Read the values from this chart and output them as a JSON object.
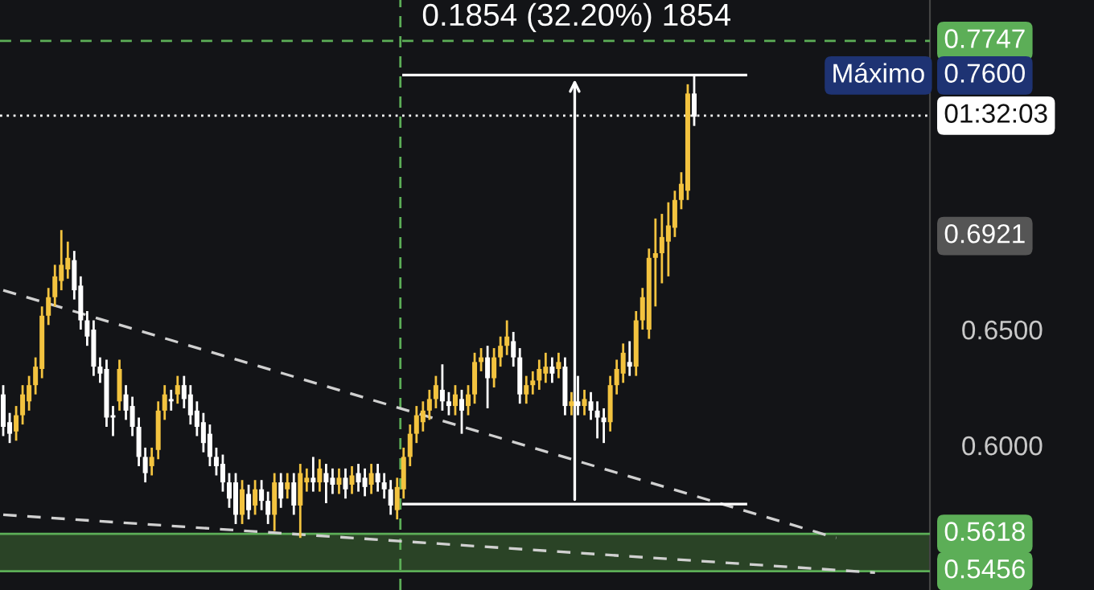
{
  "chart_data": {
    "type": "candlestick",
    "annotations": [
      "0.1854 (32.20%) 1854",
      "Máximo",
      "0.7600",
      "0.6921"
    ],
    "categories": [
      null,
      null,
      null,
      null,
      null,
      null,
      null,
      null,
      null,
      null,
      null,
      null,
      null,
      null,
      null,
      null,
      null,
      null,
      null,
      null,
      null,
      null,
      null,
      null,
      null,
      null,
      null,
      null,
      null,
      null,
      null,
      null,
      null,
      null,
      null,
      null,
      null,
      null,
      null,
      null,
      null,
      null,
      null,
      null,
      null,
      null,
      null,
      null,
      null,
      null,
      null,
      null,
      null,
      null,
      null,
      null,
      null,
      null,
      null,
      null,
      null,
      null,
      null,
      null,
      null,
      null,
      null,
      null,
      null,
      null,
      null,
      null,
      null,
      null,
      null,
      null,
      null,
      null,
      null,
      null,
      null,
      null,
      null,
      null,
      null,
      null,
      null,
      null,
      null,
      null,
      null,
      null,
      null,
      null,
      null,
      null,
      null,
      null,
      null,
      null,
      null,
      null,
      null,
      null,
      null,
      null,
      null,
      null,
      null,
      null,
      null,
      null,
      null,
      null,
      null,
      null,
      null,
      null,
      null,
      null,
      null,
      null,
      null,
      null,
      null,
      null,
      null,
      null,
      null,
      null,
      null,
      null,
      null,
      null,
      null,
      null,
      null,
      null,
      null,
      null,
      null,
      null,
      null,
      null
    ],
    "ohlc": [
      [
        0.622,
        0.626,
        0.604,
        0.608
      ],
      [
        0.61,
        0.614,
        0.601,
        0.605
      ],
      [
        0.606,
        0.617,
        0.602,
        0.613
      ],
      [
        0.613,
        0.626,
        0.609,
        0.622
      ],
      [
        0.619,
        0.63,
        0.615,
        0.626
      ],
      [
        0.626,
        0.638,
        0.622,
        0.634
      ],
      [
        0.633,
        0.66,
        0.629,
        0.656
      ],
      [
        0.656,
        0.668,
        0.652,
        0.664
      ],
      [
        0.664,
        0.678,
        0.66,
        0.673
      ],
      [
        0.671,
        0.693,
        0.667,
        0.678
      ],
      [
        0.676,
        0.688,
        0.672,
        0.681
      ],
      [
        0.68,
        0.684,
        0.663,
        0.667
      ],
      [
        0.669,
        0.673,
        0.65,
        0.654
      ],
      [
        0.654,
        0.658,
        0.643,
        0.647
      ],
      [
        0.65,
        0.654,
        0.63,
        0.634
      ],
      [
        0.634,
        0.638,
        0.627,
        0.631
      ],
      [
        0.633,
        0.637,
        0.608,
        0.612
      ],
      [
        0.612,
        0.617,
        0.604,
        0.613
      ],
      [
        0.619,
        0.637,
        0.615,
        0.633
      ],
      [
        0.622,
        0.626,
        0.611,
        0.615
      ],
      [
        0.617,
        0.621,
        0.604,
        0.608
      ],
      [
        0.608,
        0.612,
        0.591,
        0.595
      ],
      [
        0.595,
        0.599,
        0.584,
        0.588
      ],
      [
        0.591,
        0.599,
        0.587,
        0.595
      ],
      [
        0.598,
        0.619,
        0.594,
        0.615
      ],
      [
        0.615,
        0.626,
        0.611,
        0.622
      ],
      [
        0.62,
        0.624,
        0.615,
        0.619
      ],
      [
        0.622,
        0.63,
        0.618,
        0.626
      ],
      [
        0.626,
        0.63,
        0.616,
        0.62
      ],
      [
        0.622,
        0.626,
        0.609,
        0.613
      ],
      [
        0.615,
        0.619,
        0.604,
        0.608
      ],
      [
        0.61,
        0.614,
        0.597,
        0.601
      ],
      [
        0.605,
        0.609,
        0.591,
        0.595
      ],
      [
        0.595,
        0.599,
        0.587,
        0.591
      ],
      [
        0.592,
        0.596,
        0.58,
        0.584
      ],
      [
        0.584,
        0.588,
        0.573,
        0.577
      ],
      [
        0.584,
        0.588,
        0.566,
        0.57
      ],
      [
        0.57,
        0.585,
        0.566,
        0.581
      ],
      [
        0.579,
        0.583,
        0.568,
        0.572
      ],
      [
        0.574,
        0.585,
        0.57,
        0.581
      ],
      [
        0.581,
        0.585,
        0.572,
        0.576
      ],
      [
        0.576,
        0.58,
        0.566,
        0.57
      ],
      [
        0.57,
        0.588,
        0.563,
        0.584
      ],
      [
        0.584,
        0.588,
        0.573,
        0.577
      ],
      [
        0.581,
        0.588,
        0.577,
        0.584
      ],
      [
        0.584,
        0.588,
        0.57,
        0.574
      ],
      [
        0.574,
        0.592,
        0.56,
        0.588
      ],
      [
        0.584,
        0.59,
        0.58,
        0.586
      ],
      [
        0.586,
        0.595,
        0.58,
        0.584
      ],
      [
        0.584,
        0.594,
        0.58,
        0.59
      ],
      [
        0.588,
        0.592,
        0.575,
        0.584
      ],
      [
        0.586,
        0.59,
        0.579,
        0.583
      ],
      [
        0.583,
        0.59,
        0.579,
        0.586
      ],
      [
        0.586,
        0.59,
        0.577,
        0.581
      ],
      [
        0.583,
        0.591,
        0.579,
        0.587
      ],
      [
        0.588,
        0.592,
        0.58,
        0.584
      ],
      [
        0.586,
        0.59,
        0.578,
        0.582
      ],
      [
        0.583,
        0.592,
        0.579,
        0.588
      ],
      [
        0.588,
        0.592,
        0.58,
        0.584
      ],
      [
        0.584,
        0.588,
        0.577,
        0.581
      ],
      [
        0.581,
        0.585,
        0.57,
        0.574
      ],
      [
        0.572,
        0.586,
        0.568,
        0.582
      ],
      [
        0.581,
        0.599,
        0.577,
        0.595
      ],
      [
        0.595,
        0.609,
        0.591,
        0.605
      ],
      [
        0.605,
        0.617,
        0.601,
        0.613
      ],
      [
        0.61,
        0.619,
        0.606,
        0.615
      ],
      [
        0.615,
        0.624,
        0.611,
        0.62
      ],
      [
        0.62,
        0.63,
        0.616,
        0.626
      ],
      [
        0.624,
        0.635,
        0.615,
        0.619
      ],
      [
        0.619,
        0.623,
        0.613,
        0.617
      ],
      [
        0.617,
        0.626,
        0.613,
        0.622
      ],
      [
        0.62,
        0.624,
        0.605,
        0.615
      ],
      [
        0.617,
        0.626,
        0.613,
        0.622
      ],
      [
        0.622,
        0.64,
        0.618,
        0.636
      ],
      [
        0.636,
        0.642,
        0.632,
        0.638
      ],
      [
        0.638,
        0.643,
        0.616,
        0.629
      ],
      [
        0.629,
        0.642,
        0.625,
        0.638
      ],
      [
        0.638,
        0.647,
        0.634,
        0.643
      ],
      [
        0.643,
        0.654,
        0.639,
        0.647
      ],
      [
        0.645,
        0.649,
        0.634,
        0.638
      ],
      [
        0.638,
        0.642,
        0.618,
        0.622
      ],
      [
        0.622,
        0.63,
        0.618,
        0.626
      ],
      [
        0.626,
        0.632,
        0.622,
        0.628
      ],
      [
        0.628,
        0.637,
        0.624,
        0.633
      ],
      [
        0.631,
        0.64,
        0.627,
        0.634
      ],
      [
        0.634,
        0.638,
        0.627,
        0.631
      ],
      [
        0.633,
        0.64,
        0.629,
        0.636
      ],
      [
        0.634,
        0.638,
        0.613,
        0.617
      ],
      [
        0.617,
        0.623,
        0.613,
        0.619
      ],
      [
        0.619,
        0.63,
        0.613,
        0.617
      ],
      [
        0.617,
        0.624,
        0.613,
        0.62
      ],
      [
        0.619,
        0.623,
        0.611,
        0.615
      ],
      [
        0.615,
        0.619,
        0.603,
        0.612
      ],
      [
        0.612,
        0.616,
        0.601,
        0.61
      ],
      [
        0.61,
        0.63,
        0.606,
        0.626
      ],
      [
        0.626,
        0.637,
        0.622,
        0.633
      ],
      [
        0.631,
        0.644,
        0.627,
        0.64
      ],
      [
        0.636,
        0.645,
        0.63,
        0.634
      ],
      [
        0.634,
        0.658,
        0.63,
        0.654
      ],
      [
        0.654,
        0.668,
        0.65,
        0.664
      ],
      [
        0.65,
        0.685,
        0.646,
        0.681
      ],
      [
        0.681,
        0.698,
        0.66,
        0.683
      ],
      [
        0.683,
        0.7,
        0.67,
        0.69
      ],
      [
        0.688,
        0.705,
        0.673,
        0.695
      ],
      [
        0.694,
        0.71,
        0.69,
        0.706
      ],
      [
        0.706,
        0.718,
        0.702,
        0.713
      ],
      [
        0.71,
        0.756,
        0.706,
        0.752
      ],
      [
        0.752,
        0.76,
        0.738,
        0.742
      ],
      null,
      null,
      null,
      null,
      null,
      null,
      null,
      null,
      null,
      null,
      null,
      null,
      null,
      null,
      null,
      null,
      null,
      null,
      null,
      null,
      null,
      null,
      null,
      null,
      null,
      null,
      null,
      null,
      null,
      null,
      null,
      null,
      null,
      null,
      null,
      null
    ],
    "colors": [
      "#ffffff",
      "#ffffff",
      "#f3c33f",
      "#f3c33f",
      "#f3c33f",
      "#f3c33f",
      "#f3c33f",
      "#f3c33f",
      "#f3c33f",
      "#f3c33f",
      "#f3c33f",
      "#ffffff",
      "#ffffff",
      "#ffffff",
      "#ffffff",
      "#ffffff",
      "#ffffff",
      "#ffffff",
      "#f3c33f",
      "#ffffff",
      "#ffffff",
      "#ffffff",
      "#ffffff",
      "#f3c33f",
      "#f3c33f",
      "#f3c33f",
      "#ffffff",
      "#f3c33f",
      "#ffffff",
      "#ffffff",
      "#ffffff",
      "#ffffff",
      "#ffffff",
      "#ffffff",
      "#ffffff",
      "#ffffff",
      "#ffffff",
      "#f3c33f",
      "#ffffff",
      "#f3c33f",
      "#ffffff",
      "#ffffff",
      "#f3c33f",
      "#ffffff",
      "#f3c33f",
      "#ffffff",
      "#f3c33f",
      "#f3c33f",
      "#ffffff",
      "#f3c33f",
      "#ffffff",
      "#ffffff",
      "#f3c33f",
      "#ffffff",
      "#f3c33f",
      "#ffffff",
      "#ffffff",
      "#f3c33f",
      "#ffffff",
      "#ffffff",
      "#ffffff",
      "#f3c33f",
      "#f3c33f",
      "#f3c33f",
      "#f3c33f",
      "#f3c33f",
      "#f3c33f",
      "#f3c33f",
      "#ffffff",
      "#ffffff",
      "#f3c33f",
      "#ffffff",
      "#f3c33f",
      "#f3c33f",
      "#f3c33f",
      "#ffffff",
      "#f3c33f",
      "#f3c33f",
      "#f3c33f",
      "#ffffff",
      "#ffffff",
      "#f3c33f",
      "#f3c33f",
      "#f3c33f",
      "#f3c33f",
      "#ffffff",
      "#f3c33f",
      "#ffffff",
      "#f3c33f",
      "#ffffff",
      "#f3c33f",
      "#ffffff",
      "#ffffff",
      "#ffffff",
      "#f3c33f",
      "#f3c33f",
      "#f3c33f",
      "#ffffff",
      "#f3c33f",
      "#f3c33f",
      "#f3c33f",
      "#f3c33f",
      "#f3c33f",
      "#f3c33f",
      "#f3c33f",
      "#f3c33f",
      "#f3c33f",
      "#ffffff",
      null,
      null,
      null,
      null,
      null,
      null,
      null,
      null,
      null,
      null,
      null,
      null,
      null,
      null,
      null,
      null,
      null,
      null,
      null,
      null,
      null,
      null,
      null,
      null,
      null,
      null,
      null,
      null,
      null,
      null,
      null,
      null,
      null,
      null,
      null,
      null
    ],
    "series": [
      {
        "type": "line",
        "values": [
          0.667,
          null,
          null,
          null,
          null,
          null,
          null,
          null,
          null,
          null,
          null,
          null,
          null,
          null,
          null,
          null,
          null,
          null,
          null,
          null,
          null,
          null,
          null,
          null,
          null,
          null,
          null,
          null,
          null,
          null,
          null,
          null,
          null,
          null,
          null,
          null,
          null,
          null,
          null,
          null,
          null,
          null,
          null,
          null,
          null,
          null,
          null,
          null,
          null,
          null,
          null,
          null,
          null,
          null,
          null,
          null,
          null,
          null,
          null,
          null,
          null,
          null,
          null,
          null,
          null,
          null,
          null,
          null,
          null,
          null,
          null,
          null,
          null,
          null,
          null,
          null,
          null,
          null,
          null,
          null,
          null,
          null,
          null,
          null,
          null,
          null,
          null,
          null,
          null,
          null,
          null,
          null,
          null,
          null,
          null,
          null,
          null,
          null,
          null,
          null,
          null,
          null,
          null,
          null,
          null,
          null,
          null,
          null,
          null,
          null,
          null,
          null,
          null,
          null,
          null,
          null,
          null,
          null,
          null,
          null,
          null,
          null,
          null,
          null,
          null,
          null,
          null,
          null,
          null,
          0.56,
          null,
          null,
          null,
          null,
          null,
          null,
          null,
          null,
          null,
          null,
          null,
          null,
          null,
          null
        ],
        "color": "#d0d0d0",
        "line_style": "dashed"
      },
      {
        "type": "line",
        "values": [
          0.57,
          null,
          null,
          null,
          null,
          null,
          null,
          null,
          null,
          null,
          null,
          null,
          null,
          null,
          null,
          null,
          null,
          null,
          null,
          null,
          null,
          null,
          null,
          null,
          null,
          null,
          null,
          null,
          null,
          null,
          null,
          null,
          null,
          null,
          null,
          null,
          null,
          null,
          null,
          null,
          null,
          null,
          null,
          null,
          null,
          null,
          null,
          null,
          null,
          null,
          null,
          null,
          null,
          null,
          null,
          null,
          null,
          null,
          null,
          null,
          null,
          null,
          null,
          null,
          null,
          null,
          null,
          null,
          null,
          null,
          null,
          null,
          null,
          null,
          null,
          null,
          null,
          null,
          null,
          null,
          null,
          null,
          null,
          null,
          null,
          null,
          null,
          null,
          null,
          null,
          null,
          null,
          null,
          null,
          null,
          null,
          null,
          null,
          null,
          null,
          null,
          null,
          null,
          null,
          null,
          null,
          null,
          null,
          null,
          null,
          null,
          null,
          null,
          null,
          null,
          null,
          null,
          null,
          null,
          null,
          null,
          null,
          null,
          null,
          null,
          null,
          null,
          null,
          null,
          null,
          null,
          null,
          null,
          null,
          null,
          0.545,
          null,
          null,
          null,
          null,
          null,
          null,
          null,
          null
        ],
        "color": "#d0d0d0",
        "line_style": "dashed"
      },
      {
        "type": "line",
        "values": [
          null,
          null,
          null,
          null,
          null,
          null,
          null,
          null,
          null,
          null,
          null,
          null,
          null,
          null,
          null,
          null,
          null,
          null,
          null,
          null,
          null,
          null,
          null,
          null,
          null,
          null,
          null,
          null,
          null,
          null,
          null,
          null,
          null,
          null,
          null,
          null,
          null,
          null,
          null,
          null,
          null,
          null,
          null,
          null,
          null,
          null,
          null,
          null,
          null,
          null,
          null,
          null,
          null,
          null,
          null,
          null,
          null,
          null,
          null,
          null,
          null,
          null,
          0.76,
          null,
          null,
          null,
          null,
          null,
          null,
          null,
          null,
          null,
          null,
          null,
          null,
          null,
          null,
          null,
          null,
          null,
          null,
          null,
          null,
          null,
          null,
          null,
          null,
          null,
          null,
          null,
          null,
          null,
          null,
          null,
          null,
          null,
          null,
          null,
          null,
          null,
          null,
          null,
          null,
          null,
          null,
          null,
          null,
          null,
          null,
          null,
          null,
          null,
          null,
          null,
          null,
          0.76,
          null,
          null,
          null,
          null,
          null,
          null,
          null,
          null,
          null,
          null,
          null,
          null,
          null,
          null,
          null,
          null,
          null,
          null,
          null,
          null,
          null,
          null,
          null,
          null,
          null,
          null,
          null,
          null
        ],
        "color": "#ffffff",
        "line_style": "solid"
      },
      {
        "type": "line",
        "values": [
          null,
          null,
          null,
          null,
          null,
          null,
          null,
          null,
          null,
          null,
          null,
          null,
          null,
          null,
          null,
          null,
          null,
          null,
          null,
          null,
          null,
          null,
          null,
          null,
          null,
          null,
          null,
          null,
          null,
          null,
          null,
          null,
          null,
          null,
          null,
          null,
          null,
          null,
          null,
          null,
          null,
          null,
          null,
          null,
          null,
          null,
          null,
          null,
          null,
          null,
          null,
          null,
          null,
          null,
          null,
          null,
          null,
          null,
          null,
          null,
          null,
          null,
          0.5746,
          null,
          null,
          null,
          null,
          null,
          null,
          null,
          null,
          null,
          null,
          null,
          null,
          null,
          null,
          null,
          null,
          null,
          null,
          null,
          null,
          null,
          null,
          null,
          null,
          null,
          null,
          null,
          null,
          null,
          null,
          null,
          null,
          null,
          null,
          null,
          null,
          null,
          null,
          null,
          null,
          null,
          null,
          null,
          null,
          null,
          null,
          null,
          null,
          null,
          null,
          null,
          null,
          0.5746,
          null,
          null,
          null,
          null,
          null,
          null,
          null,
          null,
          null,
          null,
          null,
          null,
          null,
          null,
          null,
          null,
          null,
          null,
          null,
          null,
          null,
          null,
          null,
          null,
          null,
          null,
          null,
          null
        ],
        "color": "#ffffff",
        "line_style": "solid"
      }
    ],
    "ref_lines": [
      {
        "axis": "y",
        "value": 0.7747,
        "label": "0.7747",
        "color": "#5cae57",
        "line_style": "dashed"
      },
      {
        "axis": "y",
        "value": 0.7424,
        "label": "01:32:03",
        "color": "#ffffff",
        "line_style": "dotted"
      },
      {
        "axis": "y",
        "value": 0.5618,
        "label": "0.5618",
        "color": "#5cae57",
        "line_style": "solid"
      },
      {
        "axis": "y",
        "value": 0.5456,
        "label": "0.5456",
        "color": "#5cae57",
        "line_style": "solid"
      }
    ],
    "bands": [
      {
        "axis": "y",
        "from": 0.5456,
        "to": 0.5618,
        "color": "#2a4326"
      }
    ],
    "ylim": [
      0.5375,
      0.7924
    ],
    "yticks": [
      {
        "value": 0.6,
        "label": "0.6000"
      },
      {
        "value": 0.65,
        "label": "0.6500"
      }
    ],
    "tick_labels": "y",
    "grid": false,
    "legend": false
  }
}
